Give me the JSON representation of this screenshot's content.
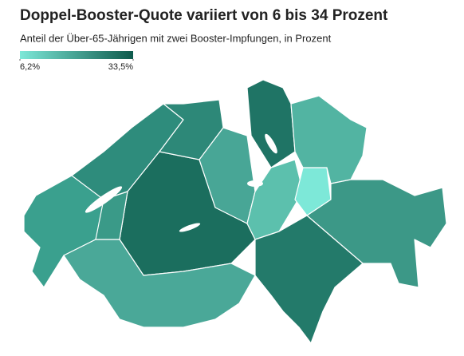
{
  "chart_data": {
    "type": "choropleth",
    "title": "Doppel-Booster-Quote variiert von 6 bis 34 Prozent",
    "subtitle": "Anteil der Über-65-Jährigen mit zwei Booster-Impfungen, in Prozent",
    "colorbar": {
      "colors": [
        "#7de8d8",
        "#0e5a4c"
      ],
      "lim": [
        6.2,
        33.5
      ],
      "ticks": [
        {
          "value": 6.2,
          "label": "6,2%"
        },
        {
          "value": 33.5,
          "label": "33,5%"
        }
      ]
    }
  }
}
